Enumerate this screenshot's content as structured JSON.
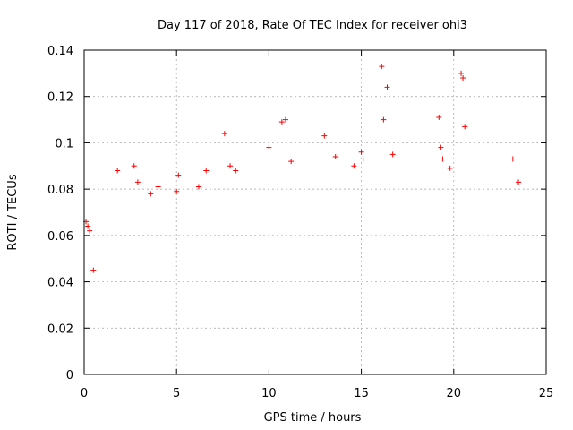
{
  "chart_data": {
    "type": "scatter",
    "title": "Day 117 of 2018, Rate Of TEC Index for receiver ohi3",
    "xlabel": "GPS time / hours",
    "ylabel": "ROTI / TECUs",
    "xlim": [
      0,
      25
    ],
    "ylim": [
      0,
      0.14
    ],
    "xticks": [
      0,
      5,
      10,
      15,
      20,
      25
    ],
    "yticks": [
      0,
      0.02,
      0.04,
      0.06,
      0.08,
      0.1,
      0.12,
      0.14
    ],
    "xtick_labels": [
      "0",
      "5",
      "10",
      "15",
      "20",
      "25"
    ],
    "ytick_labels": [
      "0",
      "0.02",
      "0.04",
      "0.06",
      "0.08",
      "0.1",
      "0.12",
      "0.14"
    ],
    "grid": true,
    "marker": "+",
    "color": "#ff0000",
    "series": [
      {
        "name": "ohi3",
        "x": [
          0.1,
          0.2,
          0.3,
          0.5,
          1.8,
          2.7,
          2.9,
          3.6,
          4.0,
          5.0,
          5.1,
          6.2,
          6.6,
          7.6,
          7.9,
          8.2,
          10.0,
          10.7,
          10.9,
          11.2,
          13.0,
          13.6,
          14.6,
          15.0,
          15.1,
          16.1,
          16.2,
          16.4,
          16.7,
          19.2,
          19.3,
          19.4,
          19.8,
          20.4,
          20.5,
          20.6,
          23.2,
          23.5
        ],
        "y": [
          0.066,
          0.064,
          0.062,
          0.045,
          0.088,
          0.09,
          0.083,
          0.078,
          0.081,
          0.079,
          0.086,
          0.081,
          0.088,
          0.104,
          0.09,
          0.088,
          0.098,
          0.109,
          0.11,
          0.092,
          0.103,
          0.094,
          0.09,
          0.096,
          0.093,
          0.133,
          0.11,
          0.124,
          0.095,
          0.111,
          0.098,
          0.093,
          0.089,
          0.13,
          0.128,
          0.107,
          0.093,
          0.083
        ]
      }
    ]
  }
}
